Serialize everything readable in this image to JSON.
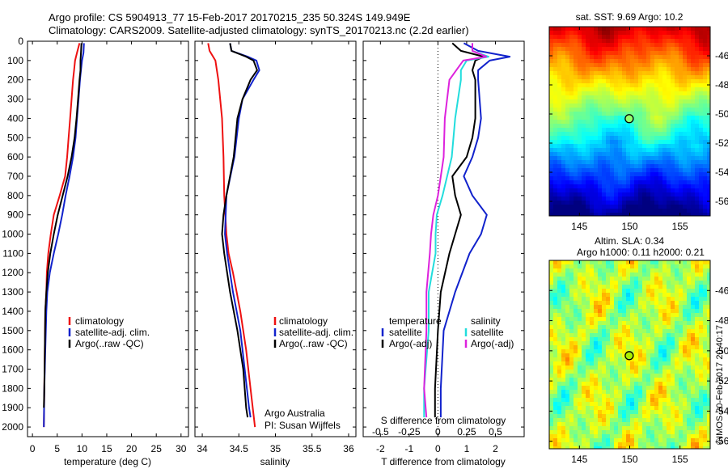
{
  "header": {
    "line1": "Argo profile: CS 5904913_77 15-Feb-2017 20170215_235 50.324S 149.949E",
    "line2": "Climatology: CARS2009. Satellite-adjusted climatology: synTS_20170213.nc (2.2d earlier)"
  },
  "credits": {
    "argo_line1": "Argo Australia",
    "argo_line2": "PI: Susan Wijffels",
    "imos": "©IMOS 20-Feb-2017 20:40:17"
  },
  "colors": {
    "climatology": "#ee1111",
    "satellite": "#1122cc",
    "argo": "#000000",
    "s_satellite": "#22dddd",
    "s_argo": "#dd22dd"
  },
  "chart_data": [
    {
      "type": "line",
      "xlabel": "temperature (deg C)",
      "ylim": [
        2050,
        0
      ],
      "xlim": [
        -1,
        31.5
      ],
      "xticks": [
        "0",
        "5",
        "10",
        "15",
        "20",
        "25",
        "30"
      ],
      "yticks": [
        "0",
        "100",
        "200",
        "300",
        "400",
        "500",
        "600",
        "700",
        "800",
        "900",
        "1000",
        "1100",
        "1200",
        "1300",
        "1400",
        "1500",
        "1600",
        "1700",
        "1800",
        "1900",
        "2000"
      ],
      "legend": [
        "climatology",
        "satellite-adj. clim.",
        "Argo(..raw -QC)"
      ],
      "legend_placement": "lower-center",
      "series": [
        {
          "name": "climatology",
          "depth": [
            10,
            60,
            100,
            150,
            200,
            300,
            400,
            500,
            600,
            700,
            800,
            900,
            1000,
            1100,
            1200,
            1300,
            1400,
            1600,
            1800,
            2000
          ],
          "values": [
            9.5,
            9.0,
            8.6,
            8.4,
            8.2,
            7.9,
            7.6,
            7.3,
            7.0,
            6.6,
            5.5,
            4.3,
            3.7,
            3.2,
            2.9,
            2.8,
            2.6,
            2.5,
            2.4,
            2.3
          ]
        },
        {
          "name": "satellite-adj. clim.",
          "depth": [
            10,
            60,
            100,
            150,
            200,
            300,
            400,
            500,
            600,
            700,
            800,
            900,
            1000,
            1100,
            1200,
            1300,
            1400,
            1600,
            1800,
            2000
          ],
          "values": [
            10.4,
            10.3,
            10.0,
            9.8,
            9.6,
            9.3,
            9.0,
            8.7,
            8.2,
            7.5,
            6.7,
            6.0,
            5.2,
            4.3,
            3.5,
            3.0,
            2.8,
            2.6,
            2.4,
            2.3
          ]
        },
        {
          "name": "Argo(..raw -QC)",
          "depth": [
            10,
            60,
            100,
            150,
            200,
            300,
            400,
            500,
            600,
            700,
            800,
            900,
            1000,
            1100,
            1200,
            1300,
            1400,
            1600,
            1800,
            1900
          ],
          "values": [
            9.9,
            9.8,
            9.7,
            9.7,
            9.5,
            9.2,
            8.9,
            8.5,
            7.9,
            7.1,
            6.1,
            5.1,
            4.3,
            3.6,
            3.1,
            2.8,
            2.6,
            2.5,
            2.4,
            2.3
          ]
        }
      ]
    },
    {
      "type": "line",
      "xlabel": "salinity",
      "ylim": [
        2050,
        0
      ],
      "xlim": [
        33.9,
        36.1
      ],
      "xticks": [
        "34",
        "34.5",
        "35",
        "35.5",
        "36"
      ],
      "legend": [
        "climatology",
        "satellite-adj. clim.",
        "Argo(..raw -QC)"
      ],
      "legend_placement": "lower-right",
      "series": [
        {
          "name": "climatology",
          "depth": [
            10,
            50,
            100,
            150,
            200,
            400,
            600,
            800,
            1000,
            1100,
            1200,
            1400,
            1600,
            1800,
            2000
          ],
          "values": [
            34.08,
            34.1,
            34.18,
            34.2,
            34.22,
            34.27,
            34.29,
            34.3,
            34.33,
            34.36,
            34.42,
            34.52,
            34.6,
            34.66,
            34.72
          ]
        },
        {
          "name": "satellite-adj. clim.",
          "depth": [
            10,
            50,
            80,
            100,
            150,
            200,
            300,
            400,
            600,
            800,
            900,
            1000,
            1100,
            1300,
            1500,
            1700,
            1900,
            1950
          ],
          "values": [
            34.38,
            34.4,
            34.62,
            34.74,
            34.78,
            34.7,
            34.55,
            34.5,
            34.44,
            34.33,
            34.32,
            34.31,
            34.34,
            34.42,
            34.52,
            34.58,
            34.64,
            34.66
          ]
        },
        {
          "name": "Argo(..raw -QC)",
          "depth": [
            10,
            50,
            80,
            100,
            150,
            200,
            300,
            400,
            600,
            800,
            900,
            1000,
            1100,
            1300,
            1500,
            1700,
            1900,
            1950
          ],
          "values": [
            34.38,
            34.4,
            34.6,
            34.7,
            34.75,
            34.66,
            34.55,
            34.48,
            34.43,
            34.33,
            34.29,
            34.27,
            34.3,
            34.38,
            34.48,
            34.56,
            34.6,
            34.62
          ]
        }
      ]
    },
    {
      "type": "line",
      "xlabel": "T difference from climatology",
      "xlabel_top": "S difference from climatology",
      "ylim": [
        2050,
        0
      ],
      "xlim": [
        -2.6,
        3.0
      ],
      "xticks": [
        "-2",
        "-1",
        "0",
        "1",
        "2"
      ],
      "xticks_s": [
        "-0.5",
        "-0.25",
        "0",
        "0.25",
        "0.5"
      ],
      "legend_titles": [
        "temperature",
        "salinity"
      ],
      "legend": [
        "satellite",
        "Argo(-adj)",
        "satellite",
        "Argo(-adj)"
      ],
      "legend_placement": "lower-center",
      "series": [
        {
          "name": "satellite",
          "quantity": "temperature",
          "depth": [
            10,
            50,
            80,
            100,
            150,
            200,
            400,
            500,
            600,
            700,
            800,
            900,
            1000,
            1100,
            1300,
            1500,
            1800,
            1950
          ],
          "values": [
            0.9,
            1.4,
            2.5,
            1.8,
            1.4,
            1.4,
            1.5,
            1.4,
            1.2,
            0.9,
            1.2,
            1.7,
            1.5,
            1.1,
            0.6,
            0.2,
            0.1,
            0.1
          ]
        },
        {
          "name": "Argo(-adj)",
          "quantity": "temperature",
          "depth": [
            10,
            50,
            80,
            100,
            150,
            200,
            400,
            500,
            600,
            700,
            800,
            900,
            1000,
            1100,
            1300,
            1500,
            1800,
            1950
          ],
          "values": [
            0.5,
            0.8,
            1.6,
            1.3,
            1.2,
            1.3,
            1.3,
            1.2,
            1.0,
            0.5,
            0.6,
            0.8,
            0.6,
            0.4,
            0.1,
            0.0,
            -0.1,
            -0.1
          ]
        },
        {
          "name": "satellite",
          "quantity": "salinity",
          "depth": [
            10,
            50,
            80,
            100,
            150,
            200,
            400,
            600,
            800,
            900,
            1000,
            1100,
            1300,
            1500,
            1800,
            1950
          ],
          "values": [
            0.3,
            0.3,
            0.44,
            0.25,
            0.2,
            0.2,
            0.15,
            0.12,
            0.04,
            -0.01,
            -0.02,
            -0.02,
            -0.08,
            -0.08,
            -0.12,
            -0.12
          ]
        },
        {
          "name": "Argo(-adj)",
          "quantity": "salinity",
          "depth": [
            10,
            50,
            80,
            100,
            150,
            200,
            400,
            600,
            800,
            900,
            1000,
            1100,
            1300,
            1500,
            1800,
            1950
          ],
          "values": [
            0.3,
            0.3,
            0.42,
            0.22,
            0.16,
            0.1,
            0.06,
            0.05,
            0.0,
            -0.04,
            -0.06,
            -0.07,
            -0.1,
            -0.1,
            -0.12,
            -0.1
          ]
        }
      ]
    },
    {
      "type": "heatmap",
      "title": "sat. SST: 9.69 Argo: 10.2",
      "xlim": [
        142,
        158
      ],
      "ylim": [
        -57,
        -44
      ],
      "xticks": [
        "145",
        "150",
        "155"
      ],
      "yticks": [
        "-46",
        "-48",
        "-50",
        "-52",
        "-54",
        "-56"
      ],
      "marker": {
        "lon": 149.95,
        "lat": -50.32
      }
    },
    {
      "type": "heatmap",
      "title": "Altim. SLA: 0.34",
      "subtitle": "Argo h1000: 0.11 h2000: 0.21",
      "xlim": [
        142,
        158
      ],
      "ylim": [
        -56.5,
        -44
      ],
      "xticks": [
        "145",
        "150",
        "155"
      ],
      "yticks": [
        "-46",
        "-48",
        "-50",
        "-52",
        "-54",
        "-56"
      ],
      "marker": {
        "lon": 149.95,
        "lat": -50.32
      }
    }
  ]
}
